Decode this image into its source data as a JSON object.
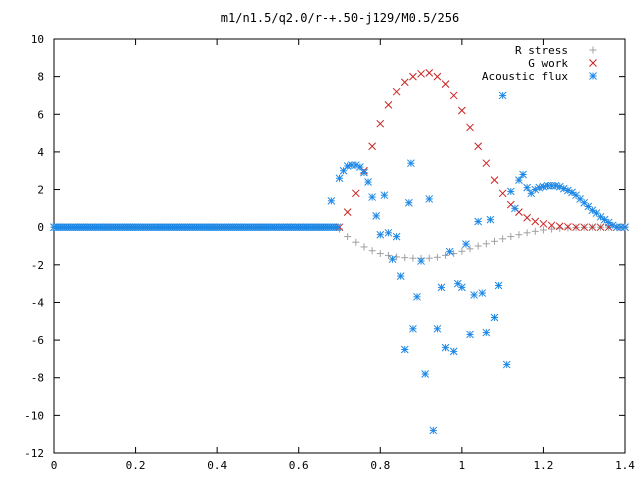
{
  "chart_data": {
    "type": "scatter",
    "title": "m1/n1.5/q2.0/r-+.50-j129/M0.5/256",
    "xlabel": "",
    "ylabel": "",
    "xlim": [
      0,
      1.4
    ],
    "ylim": [
      -12,
      10
    ],
    "x_ticks": [
      "0",
      "0.2",
      "0.4",
      "0.6",
      "0.8",
      "1",
      "1.2",
      "1.4"
    ],
    "y_ticks": [
      "10",
      "8",
      "6",
      "4",
      "2",
      "0",
      "-2",
      "-4",
      "-6",
      "-8",
      "-10",
      "-12"
    ],
    "grid": false,
    "legend_position": "top-right",
    "series": [
      {
        "name": "R stress",
        "marker": "plus",
        "color": "#a0a0a0",
        "x": [
          0.7,
          0.72,
          0.74,
          0.76,
          0.78,
          0.8,
          0.82,
          0.84,
          0.86,
          0.88,
          0.9,
          0.92,
          0.94,
          0.96,
          0.98,
          1.0,
          1.02,
          1.04,
          1.06,
          1.08,
          1.1,
          1.12,
          1.14,
          1.16,
          1.18,
          1.2,
          1.22,
          1.24,
          1.26,
          1.28,
          1.3,
          1.32,
          1.34,
          1.36,
          1.38,
          1.4
        ],
        "y": [
          -0.1,
          -0.5,
          -0.8,
          -1.05,
          -1.25,
          -1.4,
          -1.5,
          -1.58,
          -1.62,
          -1.65,
          -1.66,
          -1.65,
          -1.6,
          -1.5,
          -1.4,
          -1.28,
          -1.15,
          -1.0,
          -0.88,
          -0.75,
          -0.62,
          -0.5,
          -0.4,
          -0.3,
          -0.22,
          -0.15,
          -0.1,
          -0.06,
          -0.04,
          -0.02,
          -0.01,
          0.0,
          0.0,
          0.0,
          0.0,
          0.0
        ]
      },
      {
        "name": "G work",
        "marker": "cross",
        "color": "#cc2222",
        "x": [
          0.7,
          0.72,
          0.74,
          0.76,
          0.78,
          0.8,
          0.82,
          0.84,
          0.86,
          0.88,
          0.9,
          0.92,
          0.94,
          0.96,
          0.98,
          1.0,
          1.02,
          1.04,
          1.06,
          1.08,
          1.1,
          1.12,
          1.14,
          1.16,
          1.18,
          1.2,
          1.22,
          1.24,
          1.26,
          1.28,
          1.3,
          1.32,
          1.34,
          1.36,
          1.38,
          1.4
        ],
        "y": [
          0.0,
          0.8,
          1.8,
          3.0,
          4.3,
          5.5,
          6.5,
          7.2,
          7.7,
          8.0,
          8.15,
          8.2,
          8.0,
          7.6,
          7.0,
          6.2,
          5.3,
          4.3,
          3.4,
          2.5,
          1.8,
          1.2,
          0.8,
          0.5,
          0.3,
          0.18,
          0.1,
          0.05,
          0.02,
          0.0,
          0.0,
          0.0,
          0.0,
          0.0,
          0.0,
          0.0
        ]
      },
      {
        "name": "Acoustic flux",
        "marker": "star",
        "color": "#1e88e5",
        "x": [
          0.0,
          0.02,
          0.04,
          0.06,
          0.08,
          0.1,
          0.12,
          0.14,
          0.16,
          0.18,
          0.2,
          0.22,
          0.24,
          0.26,
          0.28,
          0.3,
          0.32,
          0.34,
          0.36,
          0.38,
          0.4,
          0.42,
          0.44,
          0.46,
          0.48,
          0.5,
          0.52,
          0.54,
          0.56,
          0.58,
          0.6,
          0.62,
          0.64,
          0.66,
          0.68,
          0.7,
          0.71,
          0.72,
          0.73,
          0.74,
          0.75,
          0.76,
          0.77,
          0.78,
          0.79,
          0.8,
          0.81,
          0.82,
          0.83,
          0.84,
          0.85,
          0.86,
          0.87,
          0.875,
          0.88,
          0.89,
          0.9,
          0.91,
          0.92,
          0.93,
          0.94,
          0.95,
          0.96,
          0.97,
          0.98,
          0.99,
          1.0,
          1.01,
          1.02,
          1.03,
          1.04,
          1.05,
          1.06,
          1.07,
          1.08,
          1.09,
          1.1,
          1.11,
          1.12,
          1.13,
          1.14,
          1.15,
          1.16,
          1.17,
          1.18,
          1.19,
          1.2,
          1.21,
          1.22,
          1.23,
          1.24,
          1.25,
          1.26,
          1.27,
          1.28,
          1.29,
          1.3,
          1.31,
          1.32,
          1.33,
          1.34,
          1.35,
          1.36,
          1.37,
          1.38,
          1.39,
          1.4
        ],
        "y": [
          0.0,
          0.0,
          0.0,
          0.0,
          0.0,
          0.0,
          0.0,
          0.0,
          0.0,
          0.0,
          0.0,
          0.0,
          0.0,
          0.0,
          0.0,
          0.0,
          0.0,
          0.0,
          0.0,
          0.0,
          0.0,
          0.0,
          0.0,
          0.0,
          0.0,
          0.0,
          0.0,
          0.0,
          0.0,
          0.0,
          0.0,
          0.0,
          0.0,
          0.0,
          1.4,
          2.6,
          3.0,
          3.25,
          3.3,
          3.3,
          3.2,
          2.9,
          2.4,
          1.6,
          0.6,
          -0.4,
          1.7,
          -0.3,
          -1.7,
          -0.5,
          -2.6,
          -6.5,
          1.3,
          3.4,
          -5.4,
          -3.7,
          -1.8,
          -7.8,
          1.5,
          -10.8,
          -5.4,
          -3.2,
          -6.4,
          -1.3,
          -6.6,
          -3.0,
          -3.2,
          -0.9,
          -5.7,
          -3.6,
          0.3,
          -3.5,
          -5.6,
          0.4,
          -4.8,
          -3.1,
          7.0,
          -7.3,
          1.9,
          1.0,
          2.5,
          2.8,
          2.1,
          1.8,
          2.0,
          2.1,
          2.15,
          2.2,
          2.2,
          2.2,
          2.15,
          2.05,
          1.95,
          1.85,
          1.7,
          1.5,
          1.3,
          1.1,
          0.9,
          0.75,
          0.55,
          0.4,
          0.25,
          0.1,
          0.0,
          0.0,
          0.0
        ]
      }
    ]
  }
}
